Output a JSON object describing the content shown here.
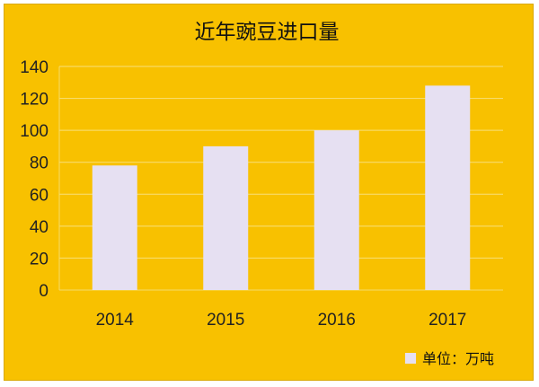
{
  "chart_data": {
    "type": "bar",
    "title": "近年豌豆进口量",
    "categories": [
      "2014",
      "2015",
      "2016",
      "2017"
    ],
    "series": [
      {
        "name": "单位：万吨",
        "values": [
          78,
          90,
          100,
          128
        ]
      }
    ],
    "ylim": [
      0,
      140
    ],
    "yticks": [
      0,
      20,
      40,
      60,
      80,
      100,
      120,
      140
    ],
    "grid": true,
    "legend_position": "bottom-right",
    "colors": {
      "background": "#F8C100",
      "bar": "#E6E0F2",
      "grid": "#F7E07A",
      "axis": "#F3DA6A"
    }
  }
}
